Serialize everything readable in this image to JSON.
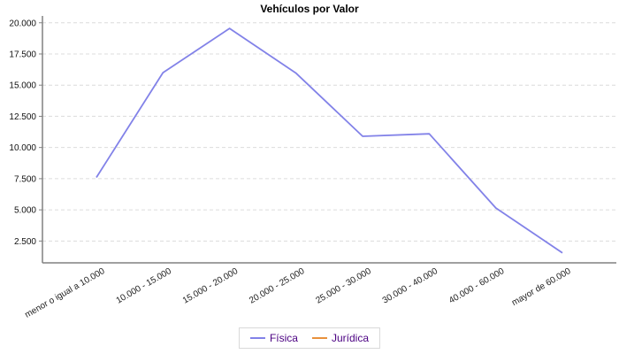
{
  "chart_data": {
    "type": "line",
    "title": "Vehículos por Valor",
    "categories": [
      "menor o igual a 10.000",
      "10.000 - 15.000",
      "15.000 - 20.000",
      "20.000 - 25.000",
      "25.000 - 30.000",
      "30.000 - 40.000",
      "40.000 - 60.000",
      "mayor de 60.000"
    ],
    "series": [
      {
        "name": "Física",
        "color": "#8282e8",
        "visible": true,
        "values": [
          7600,
          16000,
          19550,
          15950,
          10900,
          11100,
          5150,
          1550
        ]
      },
      {
        "name": "Jurídica",
        "color": "#e8913c",
        "visible": false,
        "values": null
      }
    ],
    "y_ticks": [
      2500,
      5000,
      7500,
      10000,
      12500,
      15000,
      17500,
      20000
    ],
    "y_tick_labels": [
      "2.500",
      "5.000",
      "7.500",
      "10.000",
      "12.500",
      "15.000",
      "17.500",
      "20.000"
    ],
    "ylim": [
      750,
      20550
    ],
    "xlabel": "",
    "ylabel": "",
    "grid": "horizontal-dashed",
    "grid_color": "#dcdcdc",
    "axis_color": "#808080",
    "tick_label_color": "#111111",
    "category_label_color": "#222222",
    "category_label_rotation_deg": -30,
    "legend_position": "bottom-center"
  }
}
